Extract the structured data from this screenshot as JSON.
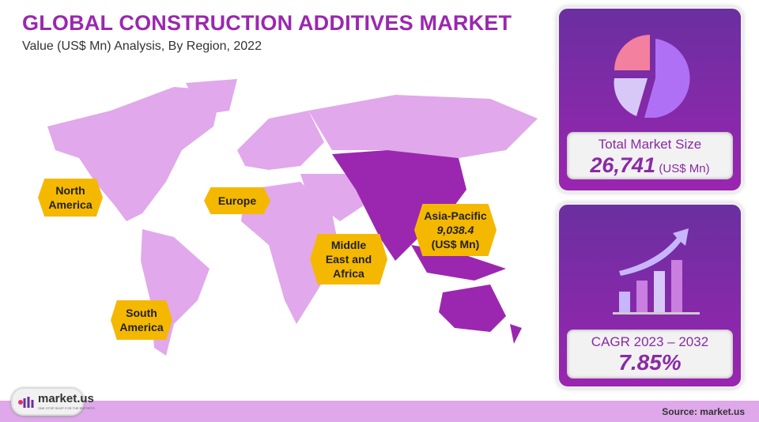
{
  "header": {
    "title": "GLOBAL CONSTRUCTION ADDITIVES MARKET",
    "subtitle": "Value (US$ Mn) Analysis, By Region, 2022"
  },
  "regions": [
    {
      "label": "North America"
    },
    {
      "label": "Europe"
    },
    {
      "label": "Middle East and Africa"
    },
    {
      "label": "South America"
    },
    {
      "label": "Asia-Pacific",
      "value": "9,038.4",
      "unit": "(US$ Mn)",
      "highlighted": true
    }
  ],
  "market_size": {
    "label": "Total Market Size",
    "value": "26,741",
    "unit": "(US$ Mn)",
    "icon": "pie-chart-icon"
  },
  "cagr": {
    "label": "CAGR 2023 – 2032",
    "value": "7.85%",
    "icon": "growth-bar-chart-icon"
  },
  "footer": {
    "source": "Source: market.us",
    "logo_text": "market.us",
    "logo_tagline": "ONE STOP SHOP FOR THE REPORTS"
  },
  "colors": {
    "accent": "#9b27b0",
    "map_land": "#e1a8eb",
    "map_highlight": "#9b27b0",
    "label_bg": "#f5b800",
    "footer": "#dfa8ea"
  }
}
